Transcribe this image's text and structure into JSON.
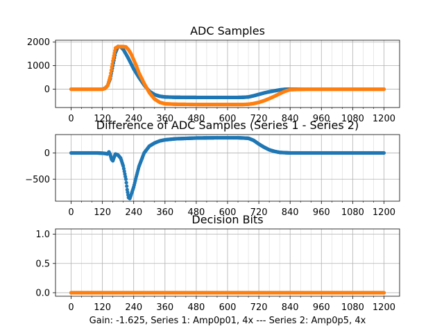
{
  "figure": {
    "caption": "Gain: -1.625, Series 1: Amp0p01, 4x --- Series 2: Amp0p5, 4x"
  },
  "colors": {
    "series1": "#1f77b4",
    "series2": "#ff7f0e",
    "grid": "#b0b0b0"
  },
  "chart_data": [
    {
      "type": "scatter",
      "title": "ADC Samples",
      "xlabel": "",
      "ylabel": "",
      "xlim": [
        -60,
        1260
      ],
      "ylim": [
        -780,
        2080
      ],
      "xticks": [
        0,
        120,
        240,
        360,
        480,
        600,
        720,
        840,
        960,
        1080,
        1200
      ],
      "yticks": [
        0,
        1000,
        2000
      ],
      "grid": true,
      "series": [
        {
          "color": "#1f77b4",
          "x": [
            0,
            100,
            120,
            130,
            140,
            150,
            160,
            170,
            180,
            190,
            200,
            210,
            220,
            230,
            240,
            260,
            280,
            300,
            320,
            340,
            360,
            400,
            480,
            560,
            640,
            660,
            680,
            700,
            720,
            740,
            760,
            780,
            800,
            820,
            840,
            900,
            960,
            1080,
            1200
          ],
          "y": [
            0,
            0,
            0,
            40,
            150,
            450,
            1000,
            1550,
            1820,
            1800,
            1690,
            1500,
            1300,
            1080,
            860,
            500,
            180,
            -90,
            -230,
            -300,
            -330,
            -345,
            -350,
            -350,
            -350,
            -345,
            -330,
            -280,
            -220,
            -160,
            -110,
            -70,
            -30,
            -5,
            0,
            0,
            0,
            0,
            0
          ]
        },
        {
          "color": "#ff7f0e",
          "x": [
            0,
            120,
            130,
            140,
            150,
            160,
            170,
            180,
            200,
            210,
            220,
            230,
            240,
            250,
            260,
            280,
            300,
            320,
            340,
            360,
            400,
            480,
            560,
            640,
            660,
            680,
            700,
            720,
            740,
            760,
            780,
            800,
            820,
            840,
            900,
            960,
            1080,
            1200
          ],
          "y": [
            0,
            0,
            30,
            150,
            550,
            1200,
            1750,
            1810,
            1810,
            1800,
            1680,
            1500,
            1250,
            1000,
            700,
            250,
            -150,
            -420,
            -560,
            -620,
            -640,
            -650,
            -650,
            -650,
            -650,
            -640,
            -610,
            -560,
            -490,
            -400,
            -300,
            -190,
            -90,
            -20,
            0,
            0,
            0,
            0
          ]
        }
      ]
    },
    {
      "type": "scatter",
      "title": "Difference of ADC Samples (Series 1 - Series 2)",
      "xlabel": "",
      "ylabel": "",
      "xlim": [
        -60,
        1260
      ],
      "ylim": [
        -920,
        350
      ],
      "xticks": [
        0,
        120,
        240,
        360,
        480,
        600,
        720,
        840,
        960,
        1080,
        1200
      ],
      "yticks": [
        -500,
        0
      ],
      "grid": true,
      "series": [
        {
          "color": "#1f77b4",
          "x": [
            0,
            100,
            120,
            130,
            140,
            145,
            150,
            155,
            160,
            165,
            170,
            180,
            190,
            200,
            210,
            215,
            220,
            225,
            230,
            240,
            250,
            260,
            280,
            300,
            320,
            340,
            360,
            400,
            480,
            560,
            640,
            660,
            680,
            700,
            720,
            740,
            760,
            780,
            800,
            820,
            840,
            900,
            960,
            1080,
            1200
          ],
          "y": [
            0,
            0,
            -5,
            -10,
            -20,
            20,
            -30,
            -120,
            -150,
            -80,
            -20,
            -40,
            -100,
            -250,
            -500,
            -700,
            -850,
            -870,
            -800,
            -650,
            -450,
            -260,
            0,
            130,
            190,
            230,
            250,
            270,
            285,
            290,
            290,
            285,
            280,
            240,
            170,
            110,
            60,
            30,
            10,
            5,
            0,
            0,
            0,
            0,
            0
          ]
        }
      ]
    },
    {
      "type": "scatter",
      "title": "Decision Bits",
      "xlabel": "Gain: -1.625, Series 1: Amp0p01, 4x --- Series 2: Amp0p5, 4x",
      "ylabel": "",
      "xlim": [
        -60,
        1260
      ],
      "ylim": [
        -0.06,
        1.09
      ],
      "xticks": [
        0,
        120,
        240,
        360,
        480,
        600,
        720,
        840,
        960,
        1080,
        1200
      ],
      "yticks": [
        0.0,
        0.5,
        1.0
      ],
      "ytick_labels": [
        "0.0",
        "0.5",
        "1.0"
      ],
      "grid": true,
      "series": [
        {
          "color": "#1f77b4",
          "x": [
            0,
            1200
          ],
          "y": [
            0,
            0
          ]
        },
        {
          "color": "#ff7f0e",
          "x": [
            0,
            1200
          ],
          "y": [
            0,
            0
          ]
        }
      ]
    }
  ]
}
